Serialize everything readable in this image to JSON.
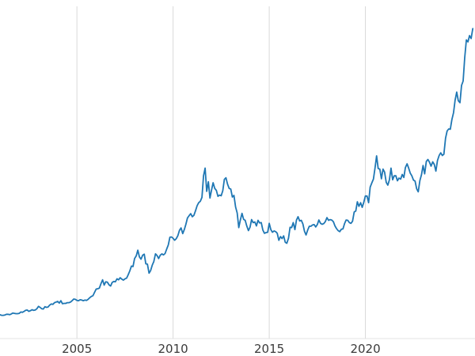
{
  "chart": {
    "background_color": "#ffffff",
    "line_color": "#1f77b4",
    "grid_color": "#d9d9d9",
    "axis_label_color": "#3a3a3a",
    "x_tick_labels": [
      "2005",
      "2010",
      "2015",
      "2020"
    ]
  },
  "chart_data": {
    "type": "line",
    "title": "",
    "xlabel": "",
    "ylabel": "",
    "legend": "none",
    "grid": "vertical-only",
    "x_ticks": [
      2005,
      2010,
      2015,
      2020
    ],
    "x_range": [
      2001.0,
      2025.7
    ],
    "x_start": 2001.0,
    "x_step_years": 0.0833333,
    "ylim": [
      0,
      100
    ],
    "y_units": "relative-scale-no-axis-labels-visible",
    "values": [
      7.2,
      7.0,
      7.0,
      7.1,
      7.3,
      7.3,
      7.2,
      7.4,
      7.7,
      7.6,
      7.5,
      7.5,
      7.6,
      8.0,
      7.9,
      8.2,
      8.5,
      8.6,
      8.2,
      8.4,
      8.7,
      8.5,
      8.6,
      9.0,
      9.7,
      9.4,
      9.0,
      8.9,
      9.6,
      9.4,
      9.5,
      10.1,
      10.4,
      10.3,
      10.8,
      11.0,
      11.2,
      10.7,
      11.4,
      10.5,
      10.6,
      10.6,
      10.8,
      10.8,
      11.0,
      11.4,
      11.9,
      11.8,
      11.5,
      11.4,
      11.7,
      11.6,
      11.4,
      11.6,
      11.5,
      11.8,
      12.3,
      12.7,
      12.9,
      13.9,
      14.9,
      15.0,
      15.2,
      16.5,
      17.7,
      16.1,
      17.1,
      17.0,
      16.2,
      15.8,
      16.9,
      17.2,
      17.1,
      18.0,
      17.7,
      18.3,
      17.9,
      17.6,
      18.0,
      18.2,
      19.2,
      20.4,
      21.8,
      21.7,
      24.1,
      24.9,
      26.6,
      24.6,
      23.9,
      25.1,
      25.4,
      22.5,
      22.4,
      19.7,
      20.5,
      22.1,
      23.2,
      25.5,
      25.0,
      24.1,
      25.1,
      25.5,
      25.2,
      25.6,
      26.9,
      28.2,
      30.5,
      30.6,
      30.2,
      29.6,
      30.1,
      31.0,
      32.6,
      33.3,
      31.6,
      32.8,
      34.4,
      36.3,
      37.0,
      37.6,
      36.7,
      37.1,
      38.5,
      40.0,
      40.9,
      41.3,
      42.5,
      49.0,
      51.3,
      44.3,
      47.2,
      42.3,
      44.7,
      46.9,
      45.2,
      44.6,
      42.8,
      43.2,
      43.0,
      44.5,
      47.9,
      48.4,
      46.5,
      45.2,
      45.0,
      42.6,
      43.1,
      39.6,
      37.8,
      33.4,
      35.7,
      37.7,
      35.9,
      35.6,
      33.9,
      32.5,
      33.5,
      35.8,
      34.9,
      35.1,
      33.9,
      35.6,
      34.8,
      34.9,
      32.7,
      31.7,
      31.9,
      32.0,
      34.7,
      32.8,
      32.0,
      32.4,
      32.2,
      31.7,
      29.6,
      30.7,
      30.1,
      30.9,
      29.0,
      28.7,
      30.2,
      33.5,
      33.4,
      34.9,
      32.8,
      35.7,
      36.7,
      35.4,
      35.6,
      34.5,
      32.3,
      31.2,
      32.7,
      33.8,
      33.8,
      34.2,
      34.3,
      33.6,
      34.3,
      35.7,
      34.7,
      34.4,
      34.6,
      35.2,
      36.4,
      35.6,
      35.8,
      35.7,
      35.2,
      33.9,
      33.1,
      32.5,
      32.2,
      32.9,
      33.0,
      34.6,
      35.7,
      35.6,
      34.9,
      34.7,
      35.3,
      38.1,
      38.4,
      41.2,
      39.8,
      40.9,
      39.5,
      41.0,
      42.9,
      42.9,
      40.9,
      45.6,
      46.8,
      48.0,
      51.3,
      55.0,
      51.2,
      51.0,
      48.1,
      51.0,
      50.1,
      47.0,
      46.2,
      47.8,
      51.3,
      47.8,
      49.0,
      49.0,
      47.5,
      48.3,
      48.0,
      49.4,
      48.5,
      51.5,
      52.6,
      51.3,
      49.8,
      49.0,
      47.7,
      47.4,
      45.1,
      44.2,
      47.6,
      49.3,
      52.1,
      49.6,
      53.3,
      53.9,
      53.1,
      51.9,
      53.2,
      52.4,
      50.4,
      53.6,
      55.1,
      55.9,
      55.1,
      55.5,
      60.3,
      62.5,
      63.1,
      63.0,
      65.9,
      68.0,
      71.8,
      74.2,
      71.6,
      71.0,
      76.2,
      77.5,
      84.5,
      89.9,
      89.3,
      91.2,
      90.3,
      93.3
    ]
  }
}
